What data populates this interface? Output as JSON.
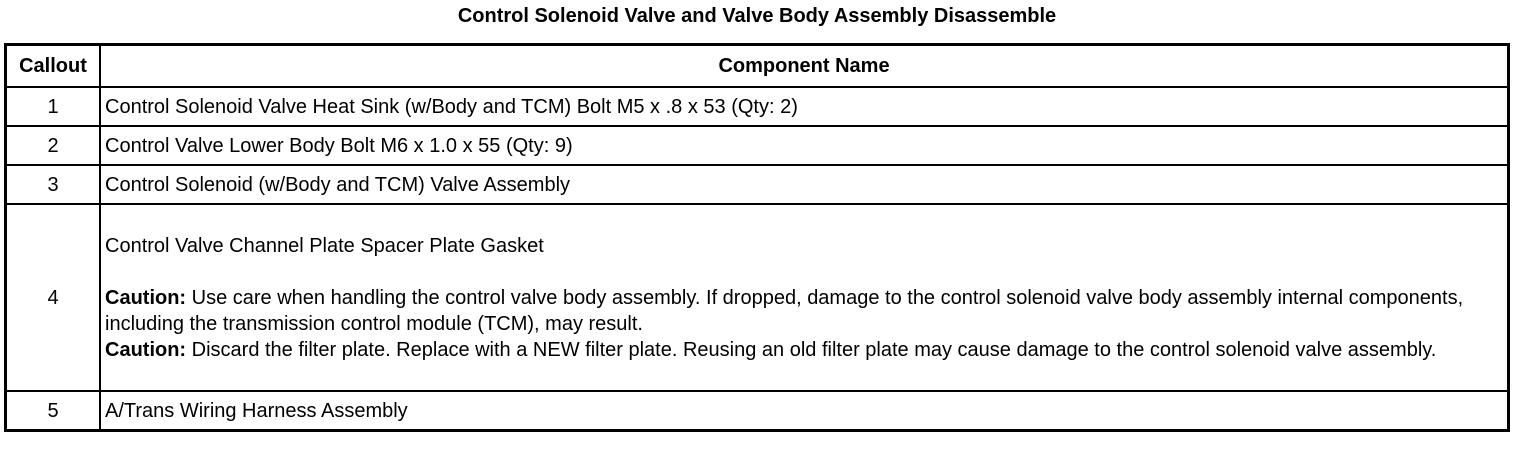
{
  "title": "Control Solenoid Valve and Valve Body Assembly Disassemble",
  "headers": {
    "callout": "Callout",
    "component": "Component Name"
  },
  "rows": [
    {
      "callout": "1",
      "name": "Control Solenoid Valve Heat Sink (w/Body and TCM) Bolt M5 x .8 x 53 (Qty: 2)"
    },
    {
      "callout": "2",
      "name": "Control Valve Lower Body Bolt M6 x 1.0 x 55 (Qty: 9)"
    },
    {
      "callout": "3",
      "name": "Control Solenoid (w/Body and TCM) Valve Assembly"
    },
    {
      "callout": "4",
      "name": "Control Valve Channel Plate Spacer Plate Gasket",
      "cautions": [
        {
          "label": "Caution:",
          "text": " Use care when handling the control valve body assembly. If dropped, damage to the control solenoid valve body assembly internal components, including the transmission control module (TCM), may result."
        },
        {
          "label": "Caution:",
          "text": " Discard the filter plate. Replace with a NEW filter plate. Reusing an old filter plate may cause damage to the control solenoid valve assembly."
        }
      ]
    },
    {
      "callout": "5",
      "name": "A/Trans Wiring Harness Assembly"
    }
  ]
}
